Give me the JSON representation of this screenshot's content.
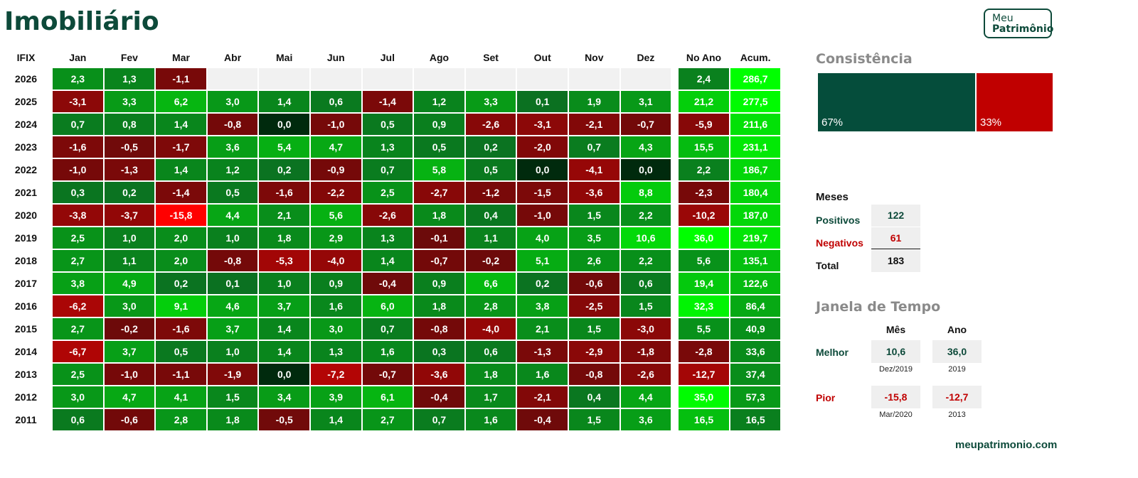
{
  "title": "Imobiliário",
  "logo": {
    "line1": "Meu",
    "line2": "Patrimônio"
  },
  "chart_data": {
    "type": "heatmap",
    "corner_label": "IFIX",
    "columns": [
      "Jan",
      "Fev",
      "Mar",
      "Abr",
      "Mai",
      "Jun",
      "Jul",
      "Ago",
      "Set",
      "Out",
      "Nov",
      "Dez",
      "No Ano",
      "Acum."
    ],
    "rows": [
      {
        "year": "2026",
        "values": [
          "2,3",
          "1,3",
          "-1,1",
          "",
          "",
          "",
          "",
          "",
          "",
          "",
          "",
          "",
          "2,4",
          "286,7"
        ]
      },
      {
        "year": "2025",
        "values": [
          "-3,1",
          "3,3",
          "6,2",
          "3,0",
          "1,4",
          "0,6",
          "-1,4",
          "1,2",
          "3,3",
          "0,1",
          "1,9",
          "3,1",
          "21,2",
          "277,5"
        ]
      },
      {
        "year": "2024",
        "values": [
          "0,7",
          "0,8",
          "1,4",
          "-0,8",
          "0,0",
          "-1,0",
          "0,5",
          "0,9",
          "-2,6",
          "-3,1",
          "-2,1",
          "-0,7",
          "-5,9",
          "211,6"
        ]
      },
      {
        "year": "2023",
        "values": [
          "-1,6",
          "-0,5",
          "-1,7",
          "3,6",
          "5,4",
          "4,7",
          "1,3",
          "0,5",
          "0,2",
          "-2,0",
          "0,7",
          "4,3",
          "15,5",
          "231,1"
        ]
      },
      {
        "year": "2022",
        "values": [
          "-1,0",
          "-1,3",
          "1,4",
          "1,2",
          "0,2",
          "-0,9",
          "0,7",
          "5,8",
          "0,5",
          "0,0",
          "-4,1",
          "0,0",
          "2,2",
          "186,7"
        ]
      },
      {
        "year": "2021",
        "values": [
          "0,3",
          "0,2",
          "-1,4",
          "0,5",
          "-1,6",
          "-2,2",
          "2,5",
          "-2,7",
          "-1,2",
          "-1,5",
          "-3,6",
          "8,8",
          "-2,3",
          "180,4"
        ]
      },
      {
        "year": "2020",
        "values": [
          "-3,8",
          "-3,7",
          "-15,8",
          "4,4",
          "2,1",
          "5,6",
          "-2,6",
          "1,8",
          "0,4",
          "-1,0",
          "1,5",
          "2,2",
          "-10,2",
          "187,0"
        ]
      },
      {
        "year": "2019",
        "values": [
          "2,5",
          "1,0",
          "2,0",
          "1,0",
          "1,8",
          "2,9",
          "1,3",
          "-0,1",
          "1,1",
          "4,0",
          "3,5",
          "10,6",
          "36,0",
          "219,7"
        ]
      },
      {
        "year": "2018",
        "values": [
          "2,7",
          "1,1",
          "2,0",
          "-0,8",
          "-5,3",
          "-4,0",
          "1,4",
          "-0,7",
          "-0,2",
          "5,1",
          "2,6",
          "2,2",
          "5,6",
          "135,1"
        ]
      },
      {
        "year": "2017",
        "values": [
          "3,8",
          "4,9",
          "0,2",
          "0,1",
          "1,0",
          "0,9",
          "-0,4",
          "0,9",
          "6,6",
          "0,2",
          "-0,6",
          "0,6",
          "19,4",
          "122,6"
        ]
      },
      {
        "year": "2016",
        "values": [
          "-6,2",
          "3,0",
          "9,1",
          "4,6",
          "3,7",
          "1,6",
          "6,0",
          "1,8",
          "2,8",
          "3,8",
          "-2,5",
          "1,5",
          "32,3",
          "86,4"
        ]
      },
      {
        "year": "2015",
        "values": [
          "2,7",
          "-0,2",
          "-1,6",
          "3,7",
          "1,4",
          "3,0",
          "0,7",
          "-0,8",
          "-4,0",
          "2,1",
          "1,5",
          "-3,0",
          "5,5",
          "40,9"
        ]
      },
      {
        "year": "2014",
        "values": [
          "-6,7",
          "3,7",
          "0,5",
          "1,0",
          "1,4",
          "1,3",
          "1,6",
          "0,3",
          "0,6",
          "-1,3",
          "-2,9",
          "-1,8",
          "-2,8",
          "33,6"
        ]
      },
      {
        "year": "2013",
        "values": [
          "2,5",
          "-1,0",
          "-1,1",
          "-1,9",
          "0,0",
          "-7,2",
          "-0,7",
          "-3,6",
          "1,8",
          "1,6",
          "-0,8",
          "-2,6",
          "-12,7",
          "37,4"
        ]
      },
      {
        "year": "2012",
        "values": [
          "3,0",
          "4,7",
          "4,1",
          "1,5",
          "3,4",
          "3,9",
          "6,1",
          "-0,4",
          "1,7",
          "-2,1",
          "0,4",
          "4,4",
          "35,0",
          "57,3"
        ]
      },
      {
        "year": "2011",
        "values": [
          "0,6",
          "-0,6",
          "2,8",
          "1,8",
          "-0,5",
          "1,4",
          "2,7",
          "0,7",
          "1,6",
          "-0,4",
          "1,5",
          "3,6",
          "16,5",
          "16,5"
        ]
      }
    ]
  },
  "consistencia": {
    "title": "Consistência",
    "pos_pct": "67%",
    "neg_pct": "33%",
    "pos_share": 0.67,
    "pos_color": "#054d3b",
    "neg_color": "#c00000"
  },
  "meses": {
    "title": "Meses",
    "positivos_label": "Positivos",
    "positivos": "122",
    "negativos_label": "Negativos",
    "negativos": "61",
    "total_label": "Total",
    "total": "183"
  },
  "janela": {
    "title": "Janela de Tempo",
    "col_mes": "Mês",
    "col_ano": "Ano",
    "melhor_label": "Melhor",
    "melhor_mes": "10,6",
    "melhor_ano": "36,0",
    "melhor_mes_date": "Dez/2019",
    "melhor_ano_date": "2019",
    "pior_label": "Pior",
    "pior_mes": "-15,8",
    "pior_ano": "-12,7",
    "pior_mes_date": "Mar/2020",
    "pior_ano_date": "2013"
  },
  "footer": {
    "site": "meupatrimonio.com"
  },
  "colors": {
    "dark_green": "#0d4a3a",
    "red_text": "#c00000"
  }
}
